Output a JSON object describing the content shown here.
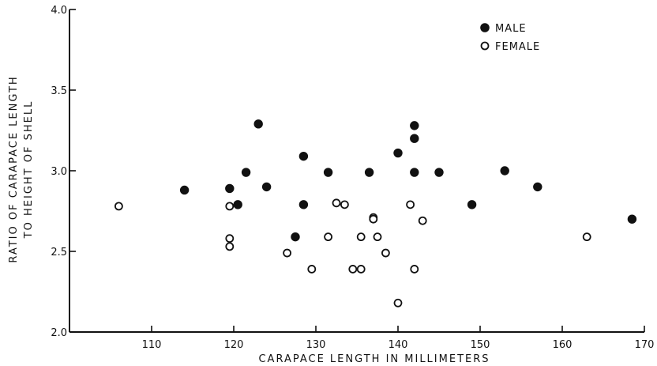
{
  "chart_data": {
    "type": "scatter",
    "title": "",
    "xlabel": "CARAPACE LENGTH IN MILLIMETERS",
    "ylabel_lines": [
      "RATIO OF CARAPACE LENGTH",
      "TO HEIGHT OF SHELL"
    ],
    "xlim": [
      100,
      170
    ],
    "ylim": [
      2.0,
      4.0
    ],
    "x_ticks": [
      110,
      120,
      130,
      140,
      150,
      160,
      170
    ],
    "y_ticks": [
      2.0,
      2.5,
      3.0,
      3.5,
      4.0
    ],
    "x_tick_labels": [
      "110",
      "120",
      "130",
      "140",
      "150",
      "160",
      "170"
    ],
    "y_tick_labels": [
      "2.0",
      "2.5",
      "3.0",
      "3.5",
      "4.0"
    ],
    "grid": false,
    "legend_position": "top-right",
    "series": [
      {
        "name": "MALE",
        "marker": "filled-circle",
        "color": "#111111",
        "points": [
          [
            114,
            2.88
          ],
          [
            119.5,
            2.89
          ],
          [
            120.5,
            2.79
          ],
          [
            121.5,
            2.99
          ],
          [
            123,
            3.29
          ],
          [
            124,
            2.9
          ],
          [
            127.5,
            2.59
          ],
          [
            128.5,
            3.09
          ],
          [
            128.5,
            2.79
          ],
          [
            131.5,
            2.99
          ],
          [
            136.5,
            2.99
          ],
          [
            140,
            3.11
          ],
          [
            142,
            3.28
          ],
          [
            142,
            3.2
          ],
          [
            142,
            2.99
          ],
          [
            145,
            2.99
          ],
          [
            149,
            2.79
          ],
          [
            153,
            3.0
          ],
          [
            157,
            2.9
          ],
          [
            168.5,
            2.7
          ]
        ]
      },
      {
        "name": "FEMALE",
        "marker": "open-circle",
        "color": "#111111",
        "points": [
          [
            106,
            2.78
          ],
          [
            119.5,
            2.78
          ],
          [
            119.5,
            2.58
          ],
          [
            119.5,
            2.53
          ],
          [
            126.5,
            2.49
          ],
          [
            129.5,
            2.39
          ],
          [
            131.5,
            2.59
          ],
          [
            132.5,
            2.8
          ],
          [
            133.5,
            2.79
          ],
          [
            134.5,
            2.39
          ],
          [
            135.5,
            2.39
          ],
          [
            135.5,
            2.59
          ],
          [
            137,
            2.71
          ],
          [
            137,
            2.7
          ],
          [
            137.5,
            2.59
          ],
          [
            138.5,
            2.49
          ],
          [
            140,
            2.18
          ],
          [
            141.5,
            2.79
          ],
          [
            142,
            2.39
          ],
          [
            143,
            2.69
          ],
          [
            163,
            2.59
          ]
        ]
      }
    ]
  }
}
